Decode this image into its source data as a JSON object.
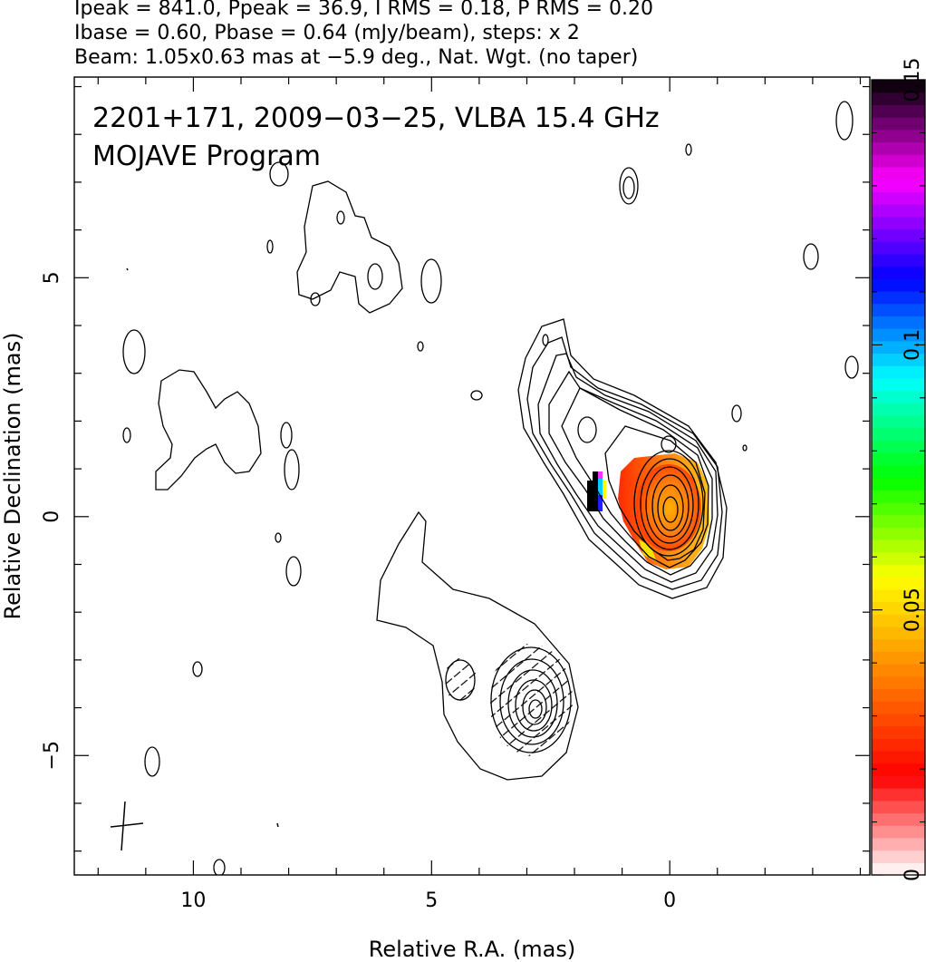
{
  "header": {
    "line1": "Ipeak = 841.0, Ppeak = 36.9, I RMS = 0.18, P RMS = 0.20",
    "line2": "Ibase = 0.60, Pbase = 0.64 (mJy/beam), steps: x 2",
    "line3": "Beam: 1.05x0.63 mas at −5.9 deg., Nat. Wgt. (no taper)"
  },
  "annotation": {
    "line1": "2201+171, 2009−03−25, VLBA 15.4 GHz",
    "line2": "MOJAVE Program"
  },
  "chart_data": {
    "type": "contour",
    "xlabel": "Relative R.A. (mas)",
    "ylabel": "Relative Declination (mas)",
    "xlim": [
      12.5,
      -4.2
    ],
    "ylim": [
      -7.5,
      9.2
    ],
    "x_reversed": true,
    "x_ticks": [
      10,
      5,
      0
    ],
    "x_tick_labels": [
      "10",
      "5",
      "0"
    ],
    "y_ticks": [
      5,
      0,
      -5
    ],
    "y_tick_labels": [
      "5",
      "0",
      "−5"
    ],
    "colorbar": {
      "range": [
        0,
        0.15
      ],
      "ticks": [
        0,
        0.05,
        0.1,
        0.15
      ],
      "tick_labels": [
        "0",
        "0.05",
        "0.1",
        "0.15"
      ],
      "colormap": [
        "#ffffff",
        "#ff0000",
        "#ff8000",
        "#ffff00",
        "#00ff00",
        "#00ffff",
        "#0000ff",
        "#ff00ff",
        "#000000"
      ]
    },
    "core": {
      "x": 0.0,
      "y": 0.1
    },
    "secondary_component": {
      "x": 3.1,
      "y": -3.9
    },
    "colors": {
      "contour": "#000000",
      "background": "#ffffff"
    }
  }
}
